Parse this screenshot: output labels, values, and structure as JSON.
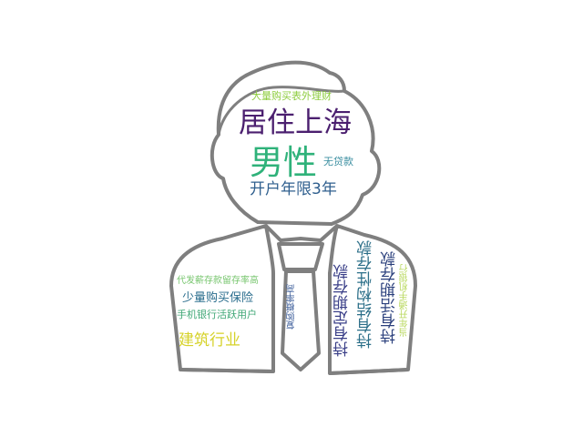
{
  "words": {
    "w_juzhu": {
      "text": "居住上海",
      "color": "#4b1f6f"
    },
    "w_nanxing": {
      "text": "男性",
      "color": "#2fb27a"
    },
    "w_kaihu": {
      "text": "开户年限3年",
      "color": "#2f5f8e"
    },
    "w_dae": {
      "text": "大量购买表外理财",
      "color": "#8dcc3e"
    },
    "w_wudai": {
      "text": "无贷款",
      "color": "#3a8ea0"
    },
    "w_daifa": {
      "text": "代发薪存款留存率高",
      "color": "#78c66f"
    },
    "w_shaoliang": {
      "text": "少量购买保险",
      "color": "#2a6d8d"
    },
    "w_shouji": {
      "text": "手机银行活跃用户",
      "color": "#41a877"
    },
    "w_jianzhu": {
      "text": "建筑行业",
      "color": "#d6d22a"
    },
    "w_fugou": {
      "text": "复购概率高",
      "color": "#3e5f9b"
    },
    "w_dingqi": {
      "text": "持有定期存款",
      "color": "#3a3f88"
    },
    "w_jiegou": {
      "text": "持有结构性存款",
      "color": "#2c6f89"
    },
    "w_huoqi": {
      "text": "持有活期存款",
      "color": "#2a3f7c"
    },
    "w_dangnian": {
      "text": "当年开通手机银行",
      "color": "#b8d85c"
    }
  },
  "colors": {
    "outline": "#7f7f7f",
    "background": "#ffffff"
  },
  "icons": {
    "figure": "person-silhouette-icon"
  }
}
